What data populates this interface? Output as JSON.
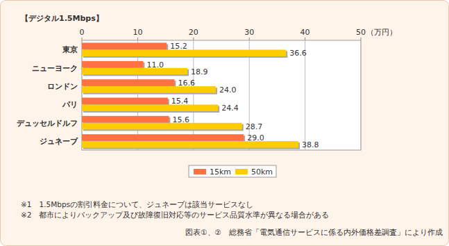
{
  "chart_data": {
    "type": "bar",
    "orientation": "horizontal",
    "title": "【デジタル1.5Mbps】",
    "xlabel": "（万円）",
    "categories": [
      "東京",
      "ニューヨーク",
      "ロンドン",
      "パリ",
      "デュッセルドルフ",
      "ジュネーブ"
    ],
    "series": [
      {
        "name": "15km",
        "color": "#ff7043",
        "values": [
          15.2,
          11.0,
          16.6,
          15.4,
          15.6,
          29.0
        ],
        "value_labels": [
          "15.2",
          "11.0",
          "16.6",
          "15.4",
          "15.6",
          "29.0"
        ]
      },
      {
        "name": "50km",
        "color": "#ffcc00",
        "values": [
          36.6,
          18.9,
          24.0,
          24.4,
          28.7,
          38.8
        ],
        "value_labels": [
          "36.6",
          "18.9",
          "24.0",
          "24.4",
          "28.7",
          "38.8"
        ]
      }
    ],
    "xlim": [
      0,
      50
    ],
    "xticks": [
      0,
      10,
      20,
      30,
      40,
      50
    ],
    "grid": true,
    "data_labels": true,
    "legend": "bottom",
    "notes": [
      "※1　1.5Mbpsの割引料金について、ジュネーブは該当サービスなし",
      "※2　都市によりバックアップ及び故障復旧対応等のサービス品質水準が異なる場合がある"
    ],
    "source": "図表①、②　総務省「電気通信サービスに係る内外価格差調査」により作成"
  }
}
